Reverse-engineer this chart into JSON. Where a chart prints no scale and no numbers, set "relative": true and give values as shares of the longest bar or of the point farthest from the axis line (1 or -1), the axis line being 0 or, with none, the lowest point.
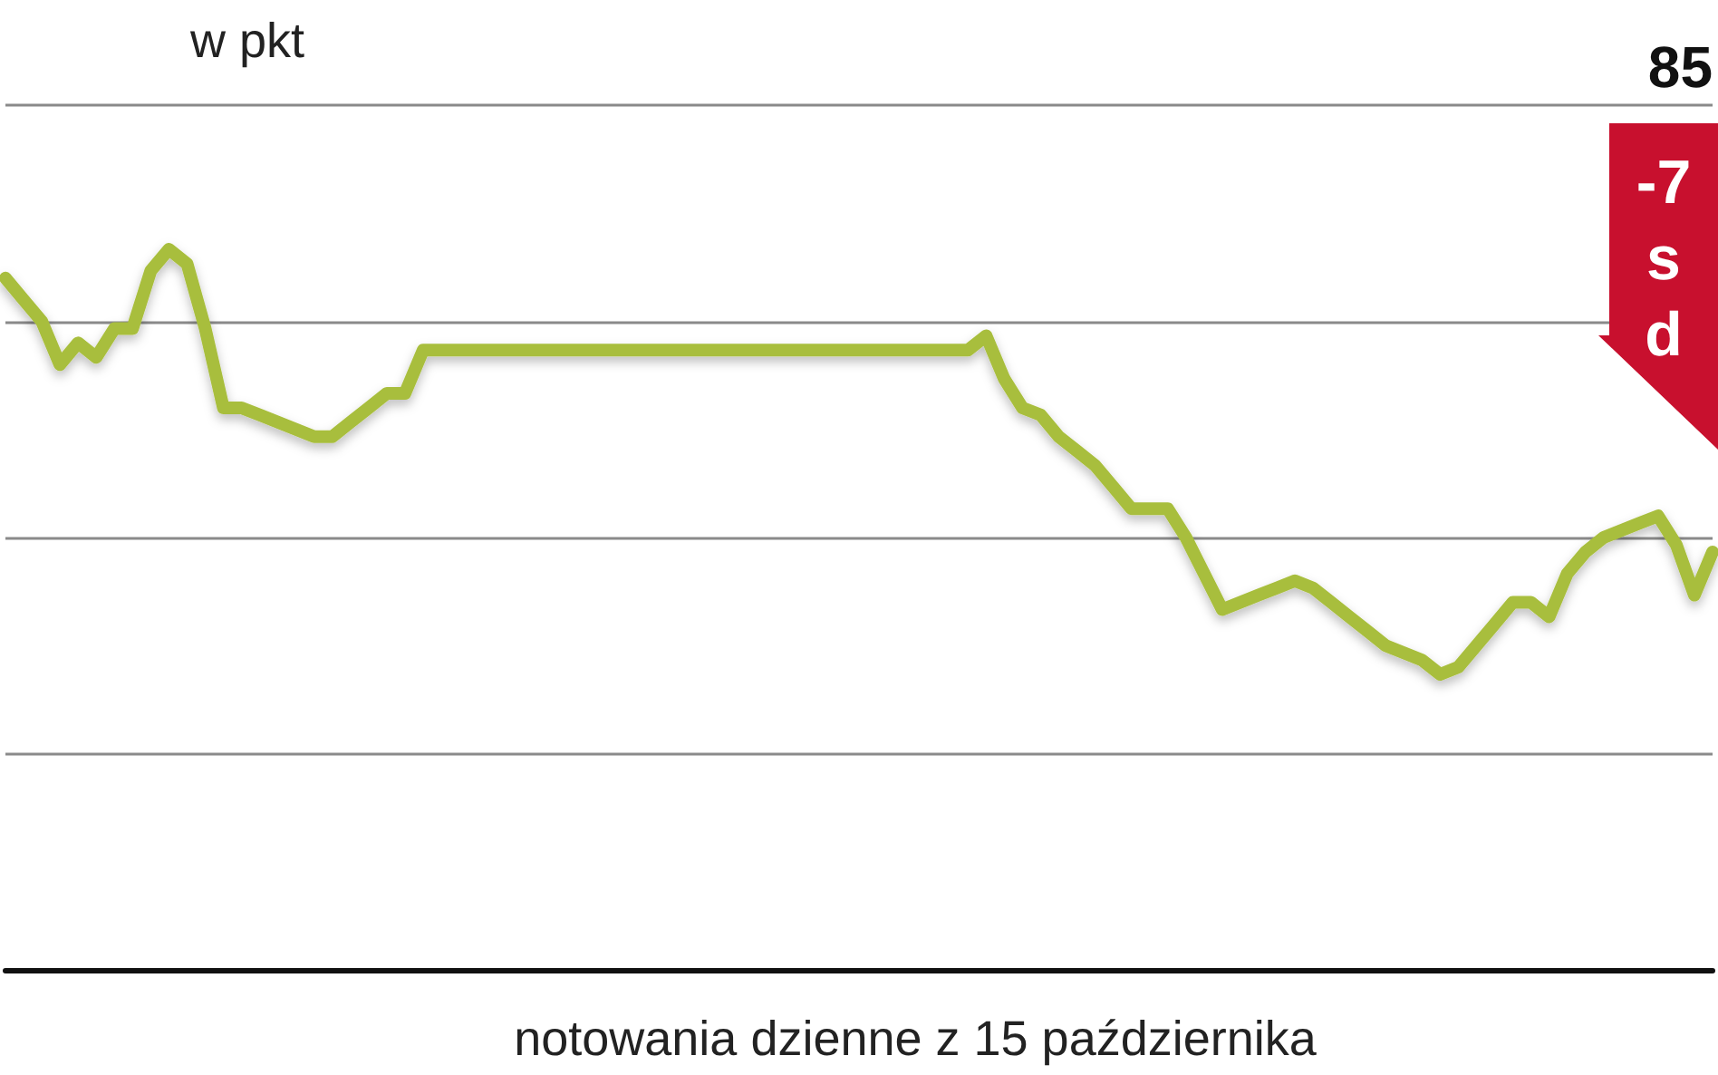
{
  "chart_data": {
    "type": "line",
    "title": "w pkt",
    "relative": true,
    "categories": [
      null,
      null,
      null,
      null,
      null,
      null,
      null,
      null,
      null,
      null,
      null,
      null,
      null,
      null,
      null,
      null,
      null,
      null,
      null,
      null,
      null,
      null,
      null,
      null,
      null,
      null,
      null,
      null,
      null,
      null,
      null,
      null,
      null,
      null,
      null,
      null,
      null,
      null,
      null,
      null,
      null,
      null,
      null,
      null,
      null,
      null,
      null,
      null,
      null,
      null,
      null,
      null,
      null,
      null,
      null,
      null,
      null,
      null,
      null,
      null,
      null,
      null,
      null,
      null,
      null,
      null,
      null,
      null,
      null,
      null,
      null,
      null,
      null,
      null,
      null,
      null,
      null,
      null,
      null,
      null,
      null,
      null,
      null,
      null,
      null,
      null,
      null,
      null,
      null,
      null,
      null,
      null,
      null,
      null,
      null
    ],
    "series": [
      {
        "color": "#a8be3c",
        "values": [
          0.96,
          0.93,
          0.9,
          0.84,
          0.87,
          0.85,
          0.89,
          0.89,
          0.97,
          1,
          0.98,
          0.89,
          0.78,
          0.78,
          0.77,
          0.76,
          0.75,
          0.74,
          0.74,
          0.76,
          0.78,
          0.8,
          0.8,
          0.86,
          0.86,
          0.86,
          0.86,
          0.86,
          0.86,
          0.86,
          0.86,
          0.86,
          0.86,
          0.86,
          0.86,
          0.86,
          0.86,
          0.86,
          0.86,
          0.86,
          0.86,
          0.86,
          0.86,
          0.86,
          0.86,
          0.86,
          0.86,
          0.86,
          0.86,
          0.86,
          0.86,
          0.86,
          0.86,
          0.86,
          0.88,
          0.82,
          0.78,
          0.77,
          0.74,
          0.72,
          0.7,
          0.67,
          0.64,
          0.64,
          0.64,
          0.6,
          0.55,
          0.5,
          0.51,
          0.52,
          0.53,
          0.54,
          0.53,
          0.51,
          0.49,
          0.47,
          0.45,
          0.44,
          0.43,
          0.41,
          0.42,
          0.45,
          0.48,
          0.51,
          0.51,
          0.49,
          0.55,
          0.58,
          0.6,
          0.61,
          0.62,
          0.63,
          0.59,
          0.52,
          0.58
        ]
      }
    ],
    "grid": "y",
    "line_style": "solid",
    "annotations": [
      "85",
      "-7",
      "s",
      "d",
      "notowania dzienne z 15 października"
    ]
  }
}
